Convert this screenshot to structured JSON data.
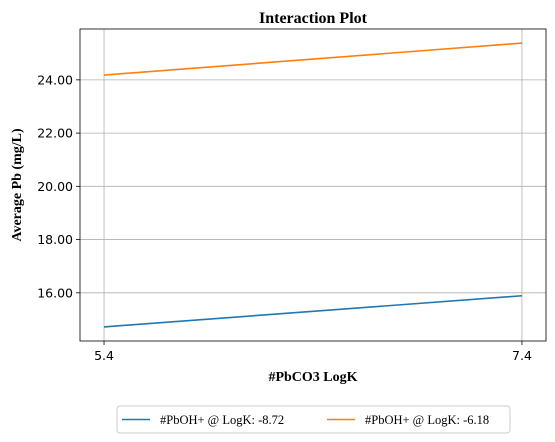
{
  "chart_data": {
    "type": "line",
    "title": "Interaction Plot",
    "xlabel": "#PbCO3 LogK",
    "ylabel": "Average Pb (mg/L)",
    "x": [
      5.4,
      7.4
    ],
    "x_tick_labels": [
      "5.4",
      "7.4"
    ],
    "y_ticks": [
      16,
      18,
      20,
      22,
      24
    ],
    "y_tick_labels": [
      "16.00",
      "18.00",
      "20.00",
      "22.00",
      "24.00"
    ],
    "xlim": [
      5.285,
      7.515
    ],
    "ylim": [
      14.19,
      25.91
    ],
    "grid": true,
    "legend_position": "bottom-center",
    "series": [
      {
        "name": "#PbOH+ @ LogK: -8.72",
        "color": "#1f77b4",
        "values": [
          14.72,
          15.89
        ]
      },
      {
        "name": "#PbOH+ @ LogK: -6.18",
        "color": "#ff7f0e",
        "values": [
          24.18,
          25.38
        ]
      }
    ]
  }
}
